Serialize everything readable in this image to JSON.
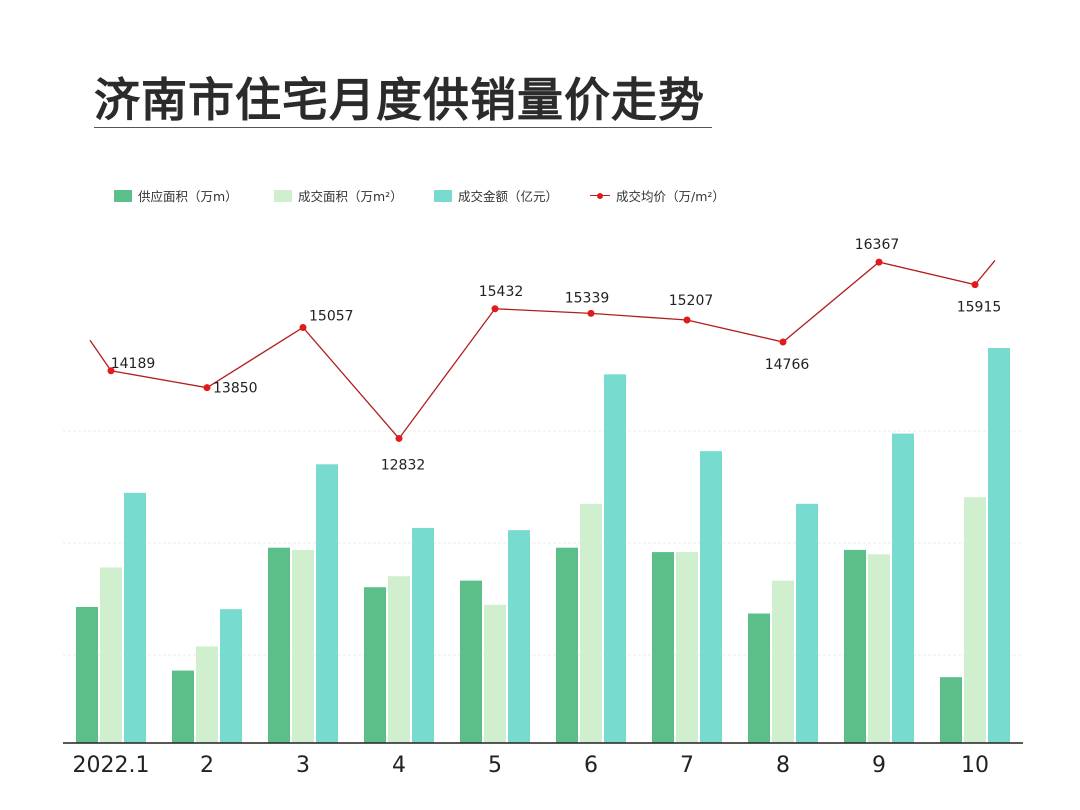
{
  "title": "济南市住宅月度供销量价走势",
  "colors": {
    "supply_area": "#5cbf8a",
    "deal_area": "#cfefcf",
    "deal_amount": "#78dbd0",
    "price_line": "#b21e1e",
    "price_marker": "#e31a1c"
  },
  "legend": [
    {
      "label": "供应面积（万m）",
      "kind": "bar",
      "color_key": "supply_area"
    },
    {
      "label": "成交面积（万m²）",
      "kind": "bar",
      "color_key": "deal_area"
    },
    {
      "label": "成交金额（亿元）",
      "kind": "bar",
      "color_key": "deal_amount"
    },
    {
      "label": "成交均价（万/m²）",
      "kind": "line",
      "color_key": "price_line"
    }
  ],
  "chart_data": {
    "type": "bar",
    "title": "济南市住宅月度供销量价走势",
    "categories": [
      "2022.1",
      "2",
      "3",
      "4",
      "5",
      "6",
      "7",
      "8",
      "9",
      "10"
    ],
    "series": [
      {
        "name": "供应面积（万m）",
        "type": "bar",
        "values": [
          62,
          33,
          89,
          71,
          74,
          89,
          87,
          59,
          88,
          30
        ]
      },
      {
        "name": "成交面积（万m²）",
        "type": "bar",
        "values": [
          80,
          44,
          88,
          76,
          63,
          109,
          87,
          74,
          86,
          112
        ]
      },
      {
        "name": "成交金额（亿元）",
        "type": "bar",
        "values": [
          114,
          61,
          127,
          98,
          97,
          168,
          133,
          109,
          141,
          180
        ]
      },
      {
        "name": "成交均价（万/m²）",
        "type": "line",
        "values": [
          14189,
          13850,
          15057,
          12832,
          15432,
          15339,
          15207,
          14766,
          16367,
          15915
        ]
      }
    ],
    "bar_ylim": [
      0,
      180
    ],
    "line_ylim": [
      12300,
      16650
    ],
    "line_lead_in": 14800,
    "line_lead_out": 16400,
    "xlabel": "",
    "ylabel": "",
    "grid": true,
    "legend_position": "top-left"
  }
}
